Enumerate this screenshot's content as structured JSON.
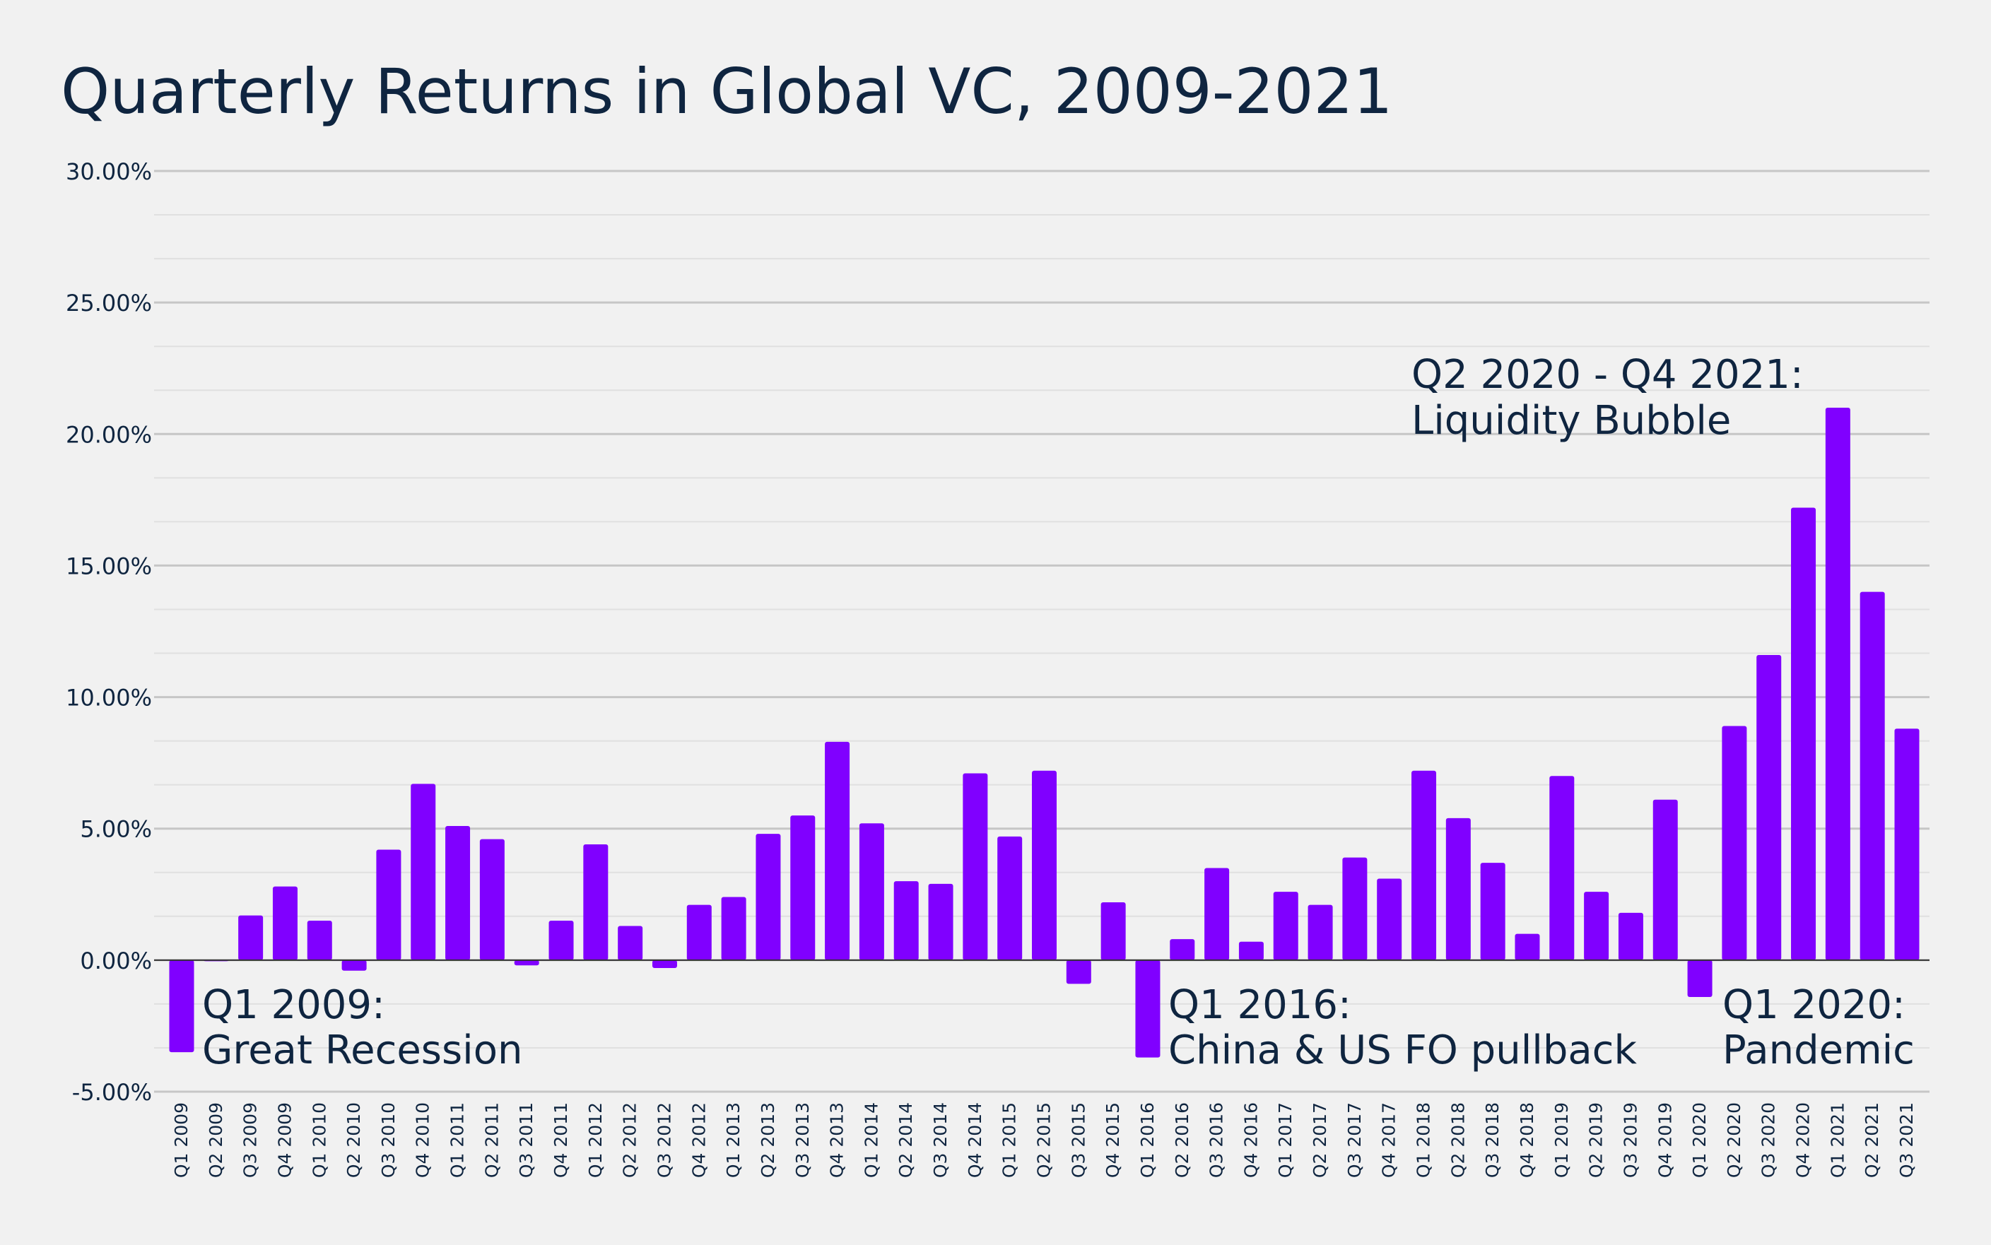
{
  "chart_data": {
    "type": "bar",
    "title": "Quarterly Returns in Global VC, 2009-2021",
    "xlabel": "",
    "ylabel": "",
    "ylim": [
      -5,
      30
    ],
    "y_ticks": [
      "30.00%",
      "25.00%",
      "20.00%",
      "15.00%",
      "10.00%",
      "5.00%",
      "0.00%",
      "-5.00%"
    ],
    "grid": true,
    "bar_color": "#8000ff",
    "categories": [
      "Q1 2009",
      "Q2 2009",
      "Q3 2009",
      "Q4 2009",
      "Q1 2010",
      "Q2 2010",
      "Q3 2010",
      "Q4 2010",
      "Q1 2011",
      "Q2 2011",
      "Q3 2011",
      "Q4 2011",
      "Q1 2012",
      "Q2 2012",
      "Q3 2012",
      "Q4 2012",
      "Q1 2013",
      "Q2 2013",
      "Q3 2013",
      "Q4 2013",
      "Q1 2014",
      "Q2 2014",
      "Q3 2014",
      "Q4 2014",
      "Q1 2015",
      "Q2 2015",
      "Q3 2015",
      "Q4 2015",
      "Q1 2016",
      "Q2 2016",
      "Q3 2016",
      "Q4 2016",
      "Q1 2017",
      "Q2 2017",
      "Q3 2017",
      "Q4 2017",
      "Q1 2018",
      "Q2 2018",
      "Q3 2018",
      "Q4 2018",
      "Q1 2019",
      "Q2 2019",
      "Q3 2019",
      "Q4 2019",
      "Q1 2020",
      "Q2 2020",
      "Q3 2020",
      "Q4 2020",
      "Q1 2021",
      "Q2 2021",
      "Q3 2021"
    ],
    "values": [
      -3.5,
      0.0,
      1.7,
      2.8,
      1.5,
      -0.4,
      4.2,
      6.7,
      5.1,
      4.6,
      -0.2,
      1.5,
      4.4,
      1.3,
      -0.3,
      2.1,
      2.4,
      4.8,
      5.5,
      8.3,
      5.2,
      3.0,
      2.9,
      7.1,
      4.7,
      7.2,
      -0.9,
      2.2,
      -3.7,
      0.8,
      3.5,
      0.7,
      2.6,
      2.1,
      3.9,
      3.1,
      7.2,
      5.4,
      3.7,
      1.0,
      7.0,
      2.6,
      1.8,
      6.1,
      -1.4,
      8.9,
      11.6,
      17.2,
      21.0,
      14.0,
      8.8
    ],
    "annotations": [
      {
        "line1": "Q1 2009:",
        "line2": "Great Recession"
      },
      {
        "line1": "Q1 2016:",
        "line2": "China & US FO pullback"
      },
      {
        "line1": "Q1 2020:",
        "line2": "Pandemic"
      },
      {
        "line1": "Q2 2020 - Q4 2021:",
        "line2": "Liquidity Bubble"
      }
    ]
  }
}
